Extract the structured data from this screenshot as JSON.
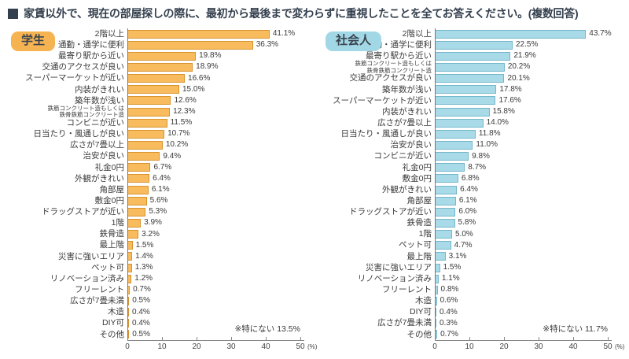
{
  "title": "家賃以外で、現在の部屋探しの際に、最初から最後まで変わらずに重視したことを全てお答えください。(複数回答)",
  "colors": {
    "title_text": "#333f4d",
    "axis_line": "#888888",
    "label_text": "#3a3a3a",
    "student_bar_fill": "#F8BC5E",
    "student_bar_border": "#D9932E",
    "student_badge": "#F6B351",
    "worker_bar_fill": "#A8DAE8",
    "worker_bar_border": "#74B7CB",
    "worker_badge": "#A2D8E6"
  },
  "axis": {
    "ticks": [
      0,
      10,
      20,
      30,
      40,
      50
    ],
    "unit": "(%)",
    "max": 50
  },
  "chart_data": [
    {
      "type": "bar",
      "orientation": "horizontal",
      "group": "学生",
      "note": "※特にない 13.5%",
      "xlim": [
        0,
        50
      ],
      "unit": "%",
      "bar_fill": "#F8BC5E",
      "bar_border": "#D9932E",
      "badge_color": "#F6B351",
      "categories": [
        "2階以上",
        "通勤・通学に便利",
        "最寄り駅から近い",
        "交通のアクセスが良い",
        "スーパーマーケットが近い",
        "内装がきれい",
        "築年数が浅い",
        "鉄筋コンクリート造もしくは\n鉄骨鉄筋コンクリート造",
        "コンビニが近い",
        "日当たり・風通しが良い",
        "広さが7畳以上",
        "治安が良い",
        "礼金0円",
        "外観がきれい",
        "角部屋",
        "敷金0円",
        "ドラッグストアが近い",
        "1階",
        "鉄骨造",
        "最上階",
        "災害に強いエリア",
        "ペット可",
        "リノベーション済み",
        "フリーレント",
        "広さが7畳未満",
        "木造",
        "DIY可",
        "その他"
      ],
      "values": [
        41.1,
        36.3,
        19.8,
        18.9,
        16.6,
        15.0,
        12.6,
        12.3,
        11.5,
        10.7,
        10.2,
        9.4,
        6.7,
        6.4,
        6.1,
        5.6,
        5.3,
        3.9,
        3.2,
        1.5,
        1.4,
        1.3,
        1.2,
        0.7,
        0.5,
        0.4,
        0.4,
        0.5
      ]
    },
    {
      "type": "bar",
      "orientation": "horizontal",
      "group": "社会人",
      "note": "※特にない 11.7%",
      "xlim": [
        0,
        50
      ],
      "unit": "%",
      "bar_fill": "#A8DAE8",
      "bar_border": "#74B7CB",
      "badge_color": "#A2D8E6",
      "categories": [
        "2階以上",
        "通勤・通学に便利",
        "最寄り駅から近い",
        "鉄筋コンクリート造もしくは\n鉄骨鉄筋コンクリート造",
        "交通のアクセスが良い",
        "築年数が浅い",
        "スーパーマーケットが近い",
        "内装がきれい",
        "広さが7畳以上",
        "日当たり・風通しが良い",
        "治安が良い",
        "コンビニが近い",
        "礼金0円",
        "敷金0円",
        "外観がきれい",
        "角部屋",
        "ドラッグストアが近い",
        "鉄骨造",
        "1階",
        "ペット可",
        "最上階",
        "災害に強いエリア",
        "リノベーション済み",
        "フリーレント",
        "木造",
        "DIY可",
        "広さが7畳未満",
        "その他"
      ],
      "values": [
        43.7,
        22.5,
        21.9,
        20.2,
        20.1,
        17.8,
        17.6,
        15.8,
        14.0,
        11.8,
        11.0,
        9.8,
        8.7,
        6.8,
        6.4,
        6.1,
        6.0,
        5.8,
        5.0,
        4.7,
        3.1,
        1.5,
        1.1,
        0.8,
        0.6,
        0.4,
        0.3,
        0.7
      ]
    }
  ]
}
